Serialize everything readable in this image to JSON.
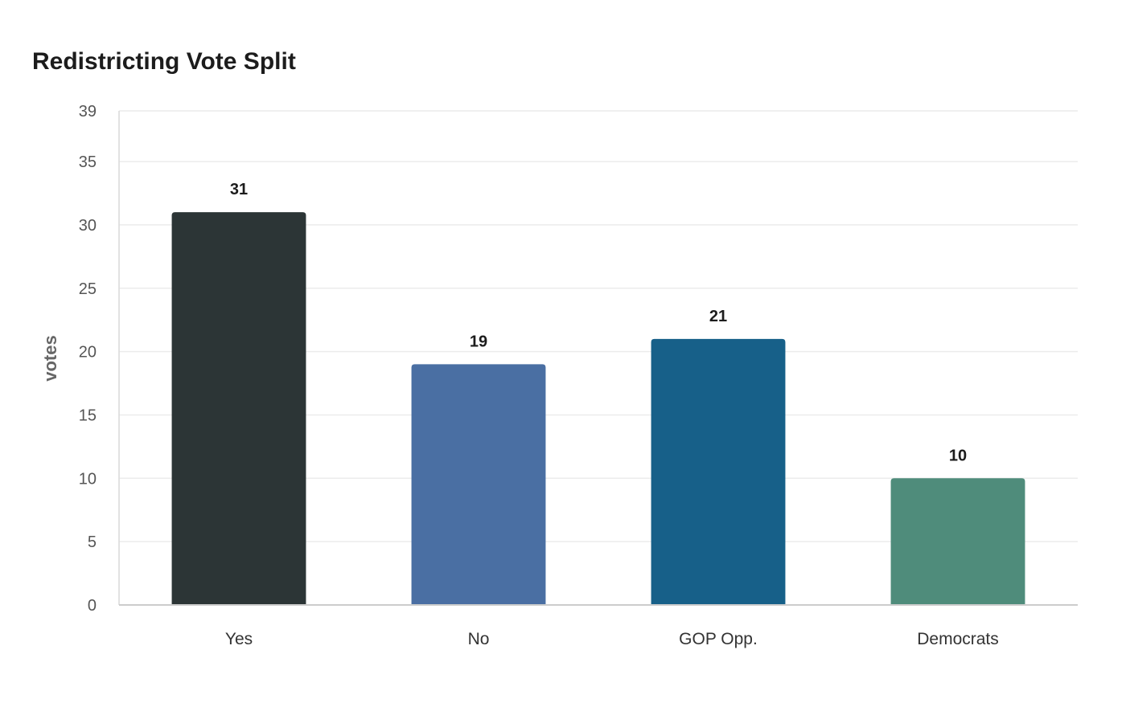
{
  "chart_data": {
    "type": "bar",
    "title": "Redistricting Vote Split",
    "xlabel": "",
    "ylabel": "votes",
    "categories": [
      "Yes",
      "No",
      "GOP Opp.",
      "Democrats"
    ],
    "values": [
      31,
      19,
      21,
      10
    ],
    "ylim": [
      0,
      39
    ],
    "yticks": [
      0,
      5,
      10,
      15,
      20,
      25,
      30,
      35,
      39
    ],
    "grid": true,
    "legend": "none",
    "colors": [
      "#2c3536",
      "#4a6fa3",
      "#176089",
      "#4f8c7b"
    ]
  }
}
